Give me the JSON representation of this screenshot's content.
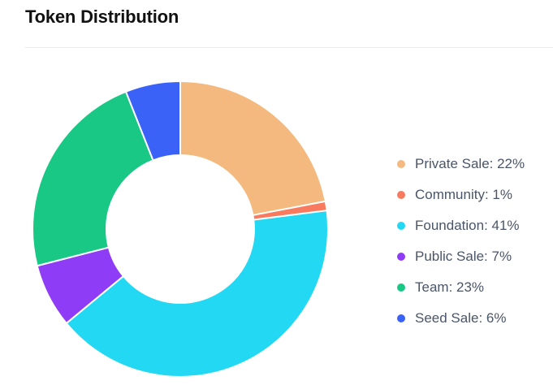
{
  "chart_data": {
    "type": "pie",
    "title": "Token Distribution",
    "categories": [
      "Private Sale",
      "Community",
      "Foundation",
      "Public Sale",
      "Team",
      "Seed Sale"
    ],
    "values": [
      22,
      1,
      41,
      7,
      23,
      6
    ],
    "legend": [
      "Private Sale: 22%",
      "Community: 1%",
      "Foundation: 41%",
      "Public Sale: 7%",
      "Team: 23%",
      "Seed Sale: 6%"
    ],
    "colors": [
      "#f4b97e",
      "#f97b5f",
      "#22d8f3",
      "#8e3cf6",
      "#18c884",
      "#3a62f6"
    ],
    "donut": true,
    "legend_position": "right"
  }
}
